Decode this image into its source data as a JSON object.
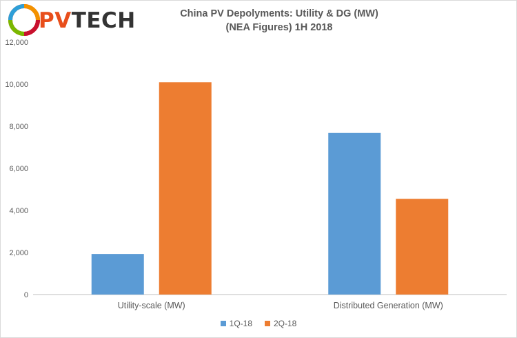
{
  "logo": {
    "brand_prefix": "PV",
    "brand_suffix": "TECH"
  },
  "chart_data": {
    "type": "bar",
    "title": "China PV Depolyments:  Utility & DG (MW)",
    "subtitle": "(NEA Figures) 1H 2018",
    "categories": [
      "Utility-scale (MW)",
      "Distributed Generation (MW)"
    ],
    "series": [
      {
        "name": "1Q-18",
        "color": "#5b9bd5",
        "values": [
          1930,
          7680
        ]
      },
      {
        "name": "2Q-18",
        "color": "#ed7d31",
        "values": [
          10090,
          4550
        ]
      }
    ],
    "ylim": [
      0,
      12000
    ],
    "yticks": [
      0,
      2000,
      4000,
      6000,
      8000,
      10000,
      12000
    ],
    "ytick_labels": [
      "0",
      "2,000",
      "4,000",
      "6,000",
      "8,000",
      "10,000",
      "12,000"
    ],
    "xlabel": "",
    "ylabel": "",
    "grid": false,
    "legend_position": "bottom"
  }
}
